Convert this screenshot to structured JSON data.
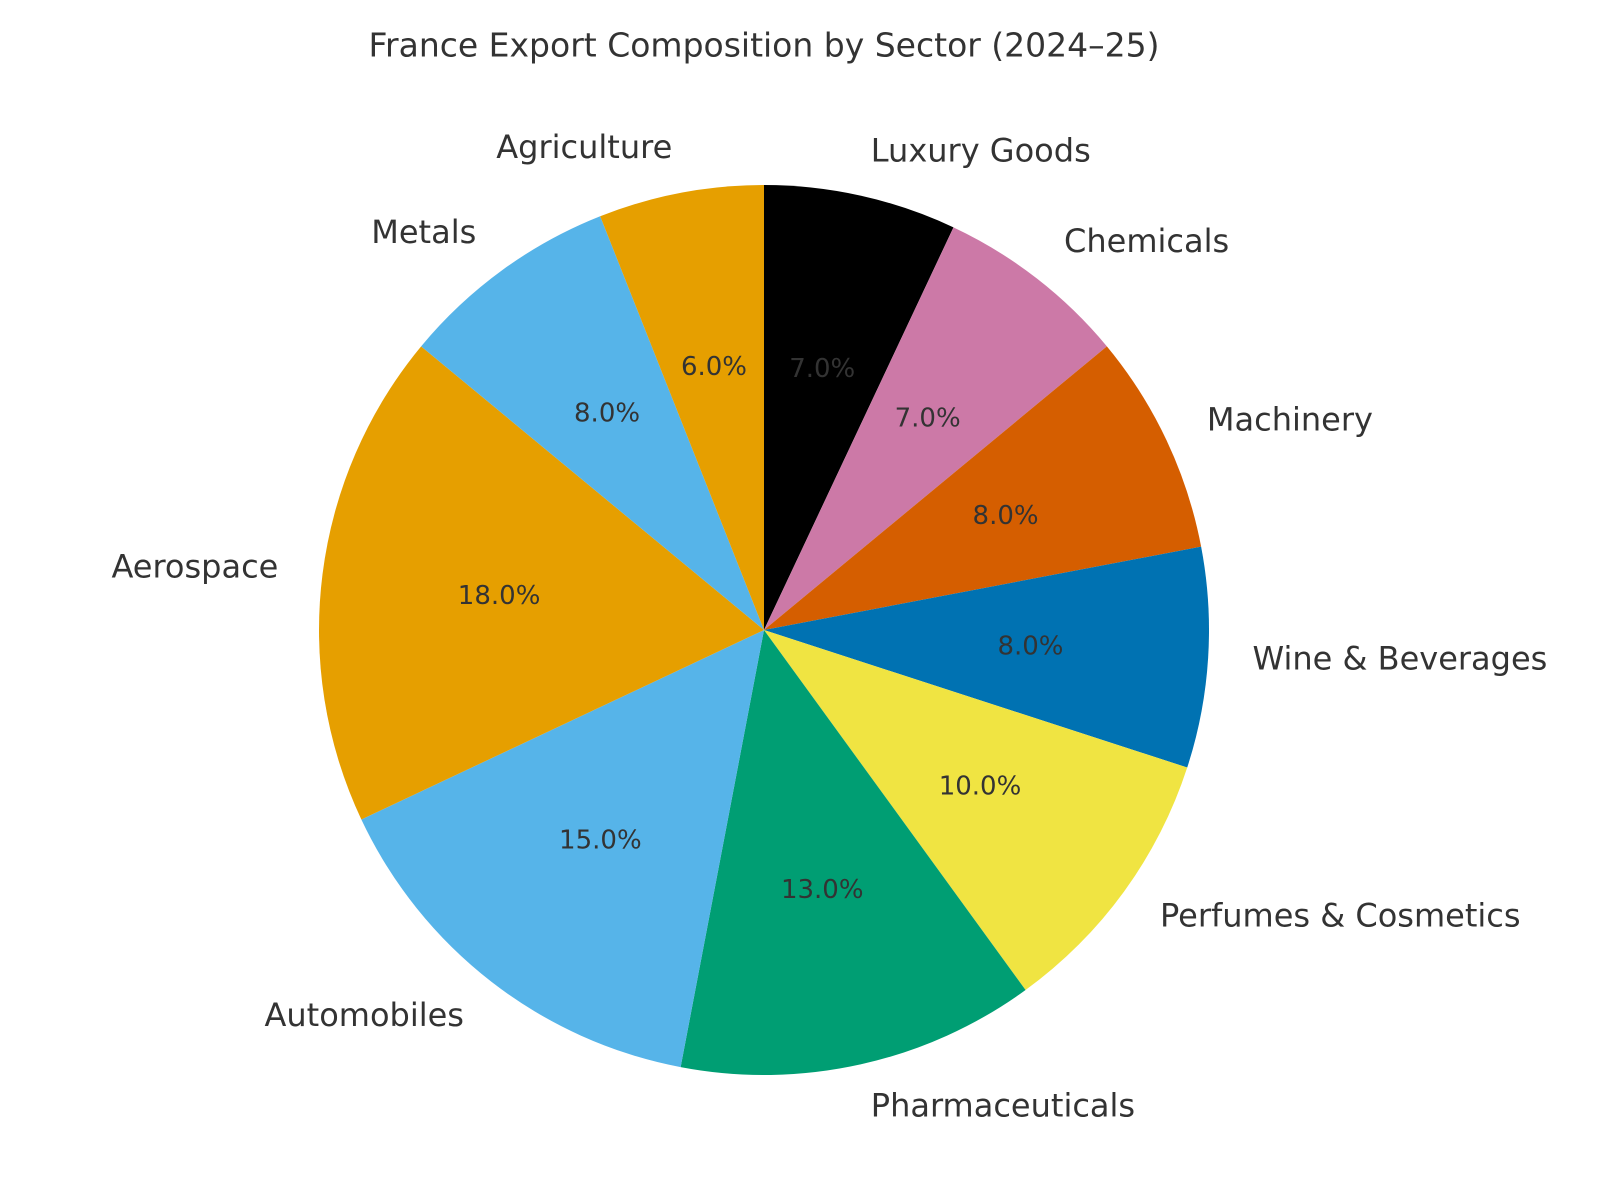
{
  "chart_data": {
    "type": "pie",
    "title": "France Export Composition by Sector (2024–25)",
    "categories": [
      "Luxury Goods",
      "Chemicals",
      "Machinery",
      "Wine & Beverages",
      "Perfumes & Cosmetics",
      "Pharmaceuticals",
      "Automobiles",
      "Aerospace",
      "Metals",
      "Agriculture"
    ],
    "values": [
      7,
      7,
      8,
      8,
      10,
      13,
      15,
      18,
      8,
      6
    ],
    "value_labels": [
      "7.0%",
      "7.0%",
      "8.0%",
      "8.0%",
      "10.0%",
      "13.0%",
      "15.0%",
      "18.0%",
      "8.0%",
      "6.0%"
    ],
    "colors": [
      "#000000",
      "#cc79a7",
      "#d55e00",
      "#0072b2",
      "#f0e442",
      "#009e73",
      "#56b4e9",
      "#e69f00",
      "#56b4e9",
      "#e69f00"
    ]
  }
}
